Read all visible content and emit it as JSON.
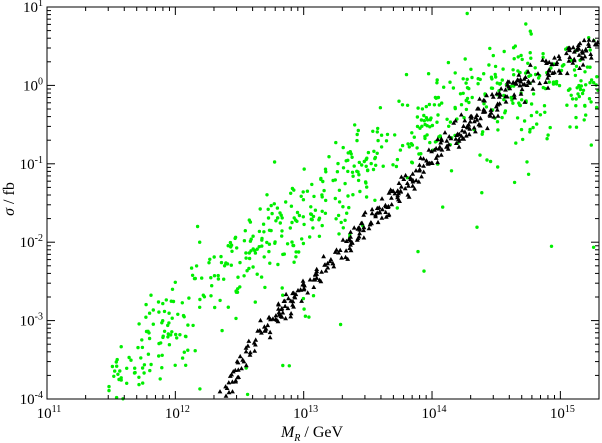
{
  "chart_data": {
    "type": "scatter",
    "title": "",
    "xlabel": "M_R / GeV",
    "ylabel": "σ / fb",
    "xscale": "log",
    "yscale": "log",
    "xlim": [
      100000000000.0,
      2000000000000000.0
    ],
    "ylim": [
      0.0001,
      10
    ],
    "grid": false,
    "legend": "none",
    "x_tick_labels": [
      "10^11",
      "10^12",
      "10^13",
      "10^14",
      "10^15"
    ],
    "y_tick_labels": [
      "10^-4",
      "10^-3",
      "10^-2",
      "10^-1",
      "10^0",
      "10^1"
    ],
    "series": [
      {
        "marker": "circle",
        "color": "#00ee00",
        "point_count": 640,
        "description": "broad band of green points rising from ~1e-4 fb near M_R=3e11 GeV to ~1 fb near 1e14-2e15 GeV, with scattered outliers below the band at high M_R",
        "trend": [
          [
            300000000000.0,
            0.00012
          ],
          [
            1000000000000.0,
            0.001
          ],
          [
            3000000000000.0,
            0.005
          ],
          [
            10000000000000.0,
            0.02
          ],
          [
            30000000000000.0,
            0.1
          ],
          [
            100000000000000.0,
            0.4
          ],
          [
            300000000000000.0,
            0.8
          ],
          [
            1000000000000000.0,
            1.0
          ],
          [
            2000000000000000.0,
            1.0
          ]
        ],
        "spread_decades": 0.5
      },
      {
        "marker": "triangle",
        "color": "#000000",
        "point_count": 420,
        "description": "narrow band of black triangles following a power law from ~1e-4 fb at M_R=2.2e12 GeV up to ~3 fb at 2e15 GeV",
        "trend": [
          [
            2200000000000.0,
            0.0001
          ],
          [
            5000000000000.0,
            0.0008
          ],
          [
            10000000000000.0,
            0.0025
          ],
          [
            30000000000000.0,
            0.015
          ],
          [
            100000000000000.0,
            0.12
          ],
          [
            300000000000000.0,
            0.6
          ],
          [
            1000000000000000.0,
            2.0
          ],
          [
            2000000000000000.0,
            3.5
          ]
        ],
        "spread_decades": 0.15
      }
    ]
  }
}
